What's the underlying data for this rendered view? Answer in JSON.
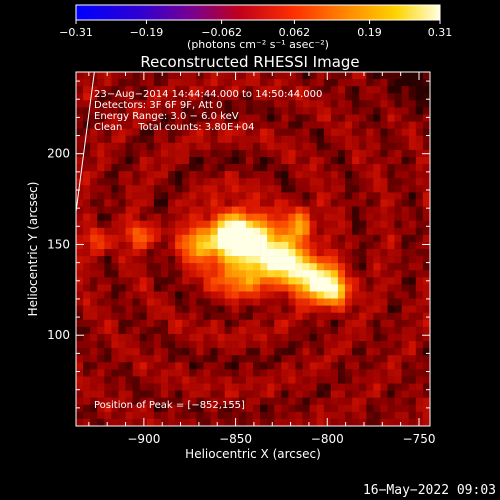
{
  "chart_data": {
    "type": "heatmap",
    "title": "Reconstructed RHESSI Image",
    "xlabel": "Heliocentric X (arcsec)",
    "ylabel": "Heliocentric Y (arcsec)",
    "xlim": [
      -937,
      -744
    ],
    "ylim": [
      50,
      245
    ],
    "x_ticks": [
      -900,
      -850,
      -800,
      -750
    ],
    "x_tick_labels": [
      "−900",
      "−850",
      "−800",
      "−750"
    ],
    "y_ticks": [
      100,
      150,
      200
    ],
    "y_tick_labels": [
      "100",
      "150",
      "200"
    ],
    "colorbar": {
      "range": [
        -0.31,
        0.31
      ],
      "ticks": [
        -0.31,
        -0.19,
        -0.062,
        0.062,
        0.19,
        0.31
      ],
      "tick_labels": [
        "−0.31",
        "−0.19",
        "−0.062",
        "0.062",
        "0.19",
        "0.31"
      ],
      "units_label": "(photons cm⁻² s⁻¹ asec⁻²)",
      "colors": [
        "#0000ff",
        "#5a00a8",
        "#c0001a",
        "#ff2600",
        "#ff8c00",
        "#ffd400",
        "#ffffe0"
      ]
    },
    "info_lines": [
      "23−Aug−2014 14:44:44.000 to 14:50:44.000",
      "Detectors: 3F 6F 9F, Att 0",
      "Energy Range: 3.0 − 6.0 keV",
      "Clean     Total counts: 3.80E+04"
    ],
    "peak_text": "Position of Peak = [−852,155]",
    "peak": {
      "x": -852,
      "y": 155
    },
    "sources": [
      {
        "x": -852,
        "y": 155,
        "amp": 1.0,
        "sx": 9,
        "sy": 9
      },
      {
        "x": -838,
        "y": 152,
        "amp": 0.75,
        "sx": 8,
        "sy": 8
      },
      {
        "x": -822,
        "y": 141,
        "amp": 0.78,
        "sx": 8,
        "sy": 7
      },
      {
        "x": -808,
        "y": 131,
        "amp": 0.85,
        "sx": 9,
        "sy": 7
      },
      {
        "x": -796,
        "y": 124,
        "amp": 0.65,
        "sx": 6,
        "sy": 6
      },
      {
        "x": -815,
        "y": 160,
        "amp": 0.55,
        "sx": 5,
        "sy": 7
      },
      {
        "x": -870,
        "y": 150,
        "amp": 0.55,
        "sx": 6,
        "sy": 6
      },
      {
        "x": -845,
        "y": 135,
        "amp": 0.45,
        "sx": 12,
        "sy": 10
      },
      {
        "x": -900,
        "y": 155,
        "amp": 0.35,
        "sx": 6,
        "sy": 5
      },
      {
        "x": -925,
        "y": 152,
        "amp": 0.3,
        "sx": 5,
        "sy": 5
      }
    ],
    "background_level": 0.12,
    "limb_line": {
      "x1": -937,
      "y1": 168,
      "x2": -927,
      "y2": 245
    }
  },
  "footer": {
    "date": "16−May−2022 09:03"
  }
}
